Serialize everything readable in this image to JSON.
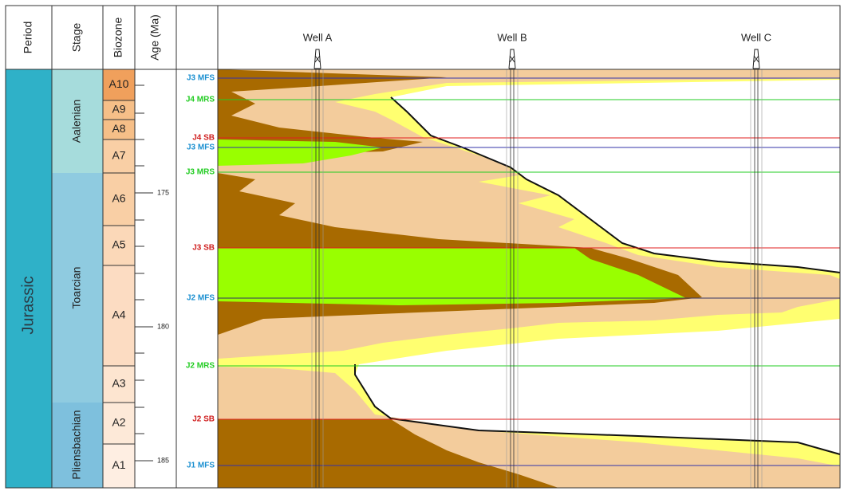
{
  "header": {
    "columns": [
      "Period",
      "Stage",
      "Biozone",
      "Age (Ma)"
    ]
  },
  "period": "Jurassic",
  "stages": [
    "Aalenian",
    "Toarcian",
    "Pliensbachian"
  ],
  "biozones": [
    "A10",
    "A9",
    "A8",
    "A7",
    "A6",
    "A5",
    "A4",
    "A3",
    "A2",
    "A1"
  ],
  "age_ticks": [
    175,
    180,
    185
  ],
  "surfaces": [
    "J3 MFS",
    "J4 MRS",
    "J4 SB",
    "J3 MFS",
    "J3 MRS",
    "J3 SB",
    "J2 MFS",
    "J2 MRS",
    "J2 SB",
    "J1 MFS"
  ],
  "wells": [
    "Well A",
    "Well B",
    "Well C"
  ]
}
